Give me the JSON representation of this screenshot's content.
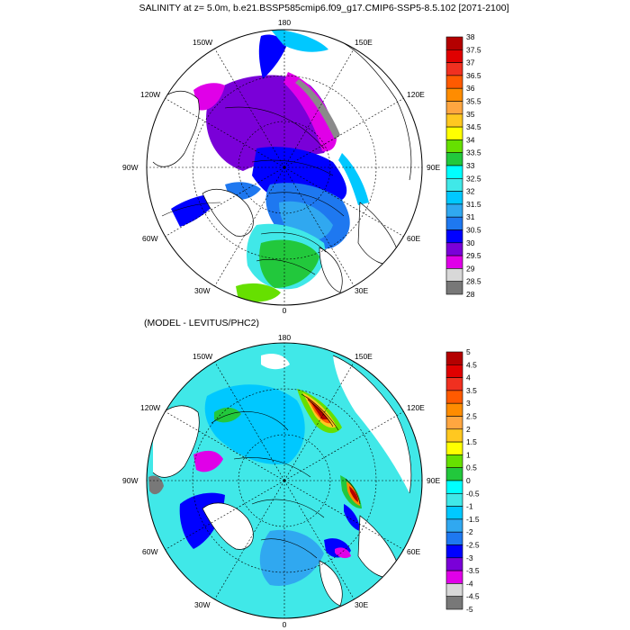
{
  "figure": {
    "title": "SALINITY at z=   5.0m, b.e21.BSSP585cmip6.f09_g17.CMIP6-SSP5-8.5.102 [2071-2100]",
    "subtitle": "(MODEL - LEVITUS/PHC2)"
  },
  "longitude_labels": {
    "top": "180",
    "bottom": "0",
    "left": "90W",
    "right": "90E",
    "upper_left": "120W",
    "upper_right": "120E",
    "top_left": "150W",
    "top_right": "150E",
    "lower_left": "60W",
    "lower_right": "60E",
    "bottom_left": "30W",
    "bottom_right": "30E"
  },
  "colorbar_top": {
    "labels": [
      "38",
      "37.5",
      "37",
      "36.5",
      "36",
      "35.5",
      "35",
      "34.5",
      "34",
      "33.5",
      "33",
      "32.5",
      "32",
      "31.5",
      "31",
      "30.5",
      "30",
      "29.5",
      "29",
      "28.5",
      "28"
    ],
    "colors": [
      "#b40000",
      "#e00000",
      "#f03020",
      "#ff5a00",
      "#ff8c00",
      "#ffa640",
      "#ffc820",
      "#ffff00",
      "#66e000",
      "#22c83c",
      "#00ffff",
      "#40e8e8",
      "#00c8ff",
      "#30a8f0",
      "#1e78f0",
      "#0000ff",
      "#7a00d8",
      "#e000e8",
      "#d8d8d8",
      "#787878"
    ]
  },
  "colorbar_bottom": {
    "labels": [
      "5",
      "4.5",
      "4",
      "3.5",
      "3",
      "2.5",
      "2",
      "1.5",
      "1",
      "0.5",
      "0",
      "-0.5",
      "-1",
      "-1.5",
      "-2",
      "-2.5",
      "-3",
      "-3.5",
      "-4",
      "-4.5",
      "-5"
    ],
    "colors": [
      "#b40000",
      "#e00000",
      "#f03020",
      "#ff5a00",
      "#ff8c00",
      "#ffa640",
      "#ffc820",
      "#ffff00",
      "#66e000",
      "#22c83c",
      "#00ffff",
      "#40e8e8",
      "#00c8ff",
      "#30a8f0",
      "#1e78f0",
      "#0000ff",
      "#7a00d8",
      "#e000e8",
      "#d8d8d8",
      "#787878"
    ]
  }
}
